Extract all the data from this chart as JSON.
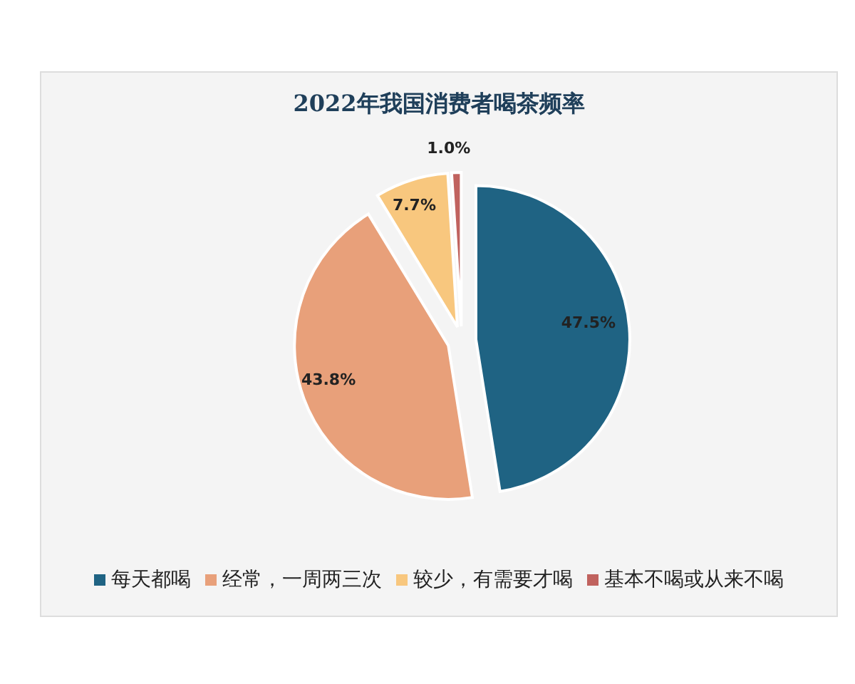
{
  "chart_data": {
    "type": "pie",
    "title": "2022年我国消费者喝茶频率",
    "categories": [
      "每天都喝",
      "经常，一周两三次",
      "较少，有需要才喝",
      "基本不喝或从来不喝"
    ],
    "values": [
      47.5,
      43.8,
      7.7,
      1.0
    ],
    "colors": [
      "#1f6383",
      "#e8a07a",
      "#f8c77e",
      "#c0625e"
    ],
    "value_labels": [
      "47.5%",
      "43.8%",
      "7.7%",
      "1.0%"
    ],
    "legend": "bottom"
  }
}
